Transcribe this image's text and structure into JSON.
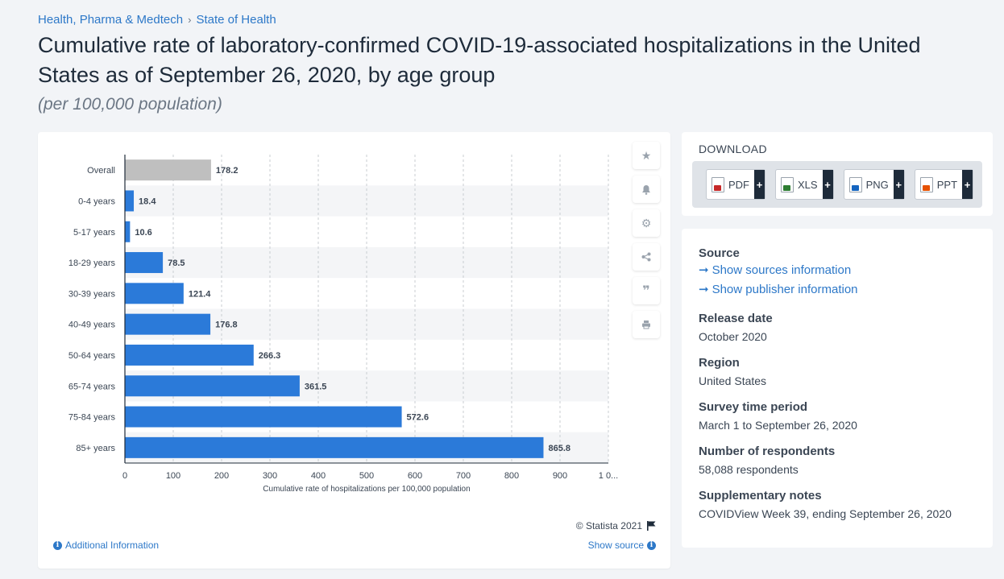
{
  "breadcrumb": {
    "item1": "Health, Pharma & Medtech",
    "sep": "›",
    "item2": "State of Health"
  },
  "title": "Cumulative rate of laboratory-confirmed COVID-19-associated hospitalizations in the United States as of September 26, 2020, by age group",
  "subtitle": "(per 100,000 population)",
  "chart_data": {
    "type": "bar",
    "orientation": "horizontal",
    "categories": [
      "Overall",
      "0-4 years",
      "5-17 years",
      "18-29 years",
      "30-39 years",
      "40-49 years",
      "50-64 years",
      "65-74 years",
      "75-84 years",
      "85+ years"
    ],
    "values": [
      178.2,
      18.4,
      10.6,
      78.5,
      121.4,
      176.8,
      266.3,
      361.5,
      572.6,
      865.8
    ],
    "value_labels": [
      "178.2",
      "18.4",
      "10.6",
      "78.5",
      "121.4",
      "176.8",
      "266.3",
      "361.5",
      "572.6",
      "865.8"
    ],
    "bar_colors": [
      "#bfbfbf",
      "#2b7ad9",
      "#2b7ad9",
      "#2b7ad9",
      "#2b7ad9",
      "#2b7ad9",
      "#2b7ad9",
      "#2b7ad9",
      "#2b7ad9",
      "#2b7ad9"
    ],
    "xlabel": "Cumulative rate of hospitalizations per 100,000 population",
    "ylabel": "",
    "xlim": [
      0,
      1000
    ],
    "x_ticks": [
      0,
      100,
      200,
      300,
      400,
      500,
      600,
      700,
      800,
      900,
      1000
    ],
    "x_tick_labels": [
      "0",
      "100",
      "200",
      "300",
      "400",
      "500",
      "600",
      "700",
      "800",
      "900",
      "1 0..."
    ],
    "grid": true,
    "legend": "none"
  },
  "tools": [
    "star-icon",
    "bell-icon",
    "gear-icon",
    "share-icon",
    "quote-icon",
    "print-icon"
  ],
  "credit": "© Statista 2021",
  "additional_info": "Additional Information",
  "show_source": "Show source",
  "download": {
    "title": "DOWNLOAD",
    "buttons": [
      {
        "label": "PDF",
        "color": "#c62828"
      },
      {
        "label": "XLS",
        "color": "#2e7d32"
      },
      {
        "label": "PNG",
        "color": "#1565c0"
      },
      {
        "label": "PPT",
        "color": "#e65100"
      }
    ],
    "plus": "+"
  },
  "meta": {
    "source_label": "Source",
    "show_sources": "Show sources information",
    "show_publisher": "Show publisher information",
    "release_label": "Release date",
    "release_value": "October 2020",
    "region_label": "Region",
    "region_value": "United States",
    "period_label": "Survey time period",
    "period_value": "March 1 to September 26, 2020",
    "respondents_label": "Number of respondents",
    "respondents_value": "58,088 respondents",
    "notes_label": "Supplementary notes",
    "notes_value": "COVIDView Week 39, ending September 26, 2020"
  }
}
